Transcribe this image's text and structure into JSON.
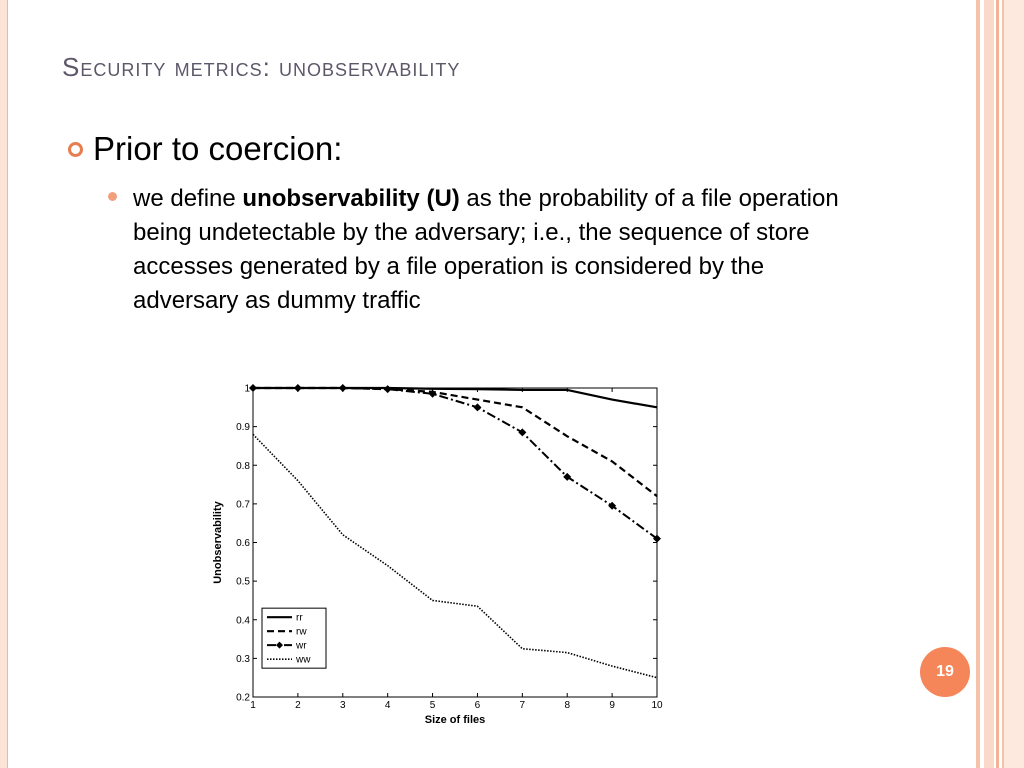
{
  "slide": {
    "title": "Security metrics: unobservability",
    "bullet_main": "Prior to coercion:",
    "bullet_sub_prefix": "we define ",
    "bullet_sub_bold": "unobservability (U)",
    "bullet_sub_rest": " as the probability of a file operation being undetectable by the adversary; i.e., the sequence of store accesses generated by a file operation is considered by the adversary as dummy traffic",
    "page_number": "19"
  },
  "colors": {
    "accent": "#f5865a",
    "title_color": "#5d5769"
  },
  "chart_data": {
    "type": "line",
    "xlabel": "Size of files",
    "ylabel": "Unobservability",
    "x": [
      1,
      2,
      3,
      4,
      5,
      6,
      7,
      8,
      9,
      10
    ],
    "xlim": [
      1,
      10
    ],
    "ylim": [
      0.2,
      1
    ],
    "xticks": [
      "1",
      "2",
      "3",
      "4",
      "5",
      "6",
      "7",
      "8",
      "9",
      "10"
    ],
    "yticks": [
      "0.2",
      "0.3",
      "0.4",
      "0.5",
      "0.6",
      "0.7",
      "0.8",
      "0.9",
      "1"
    ],
    "legend_position": "bottom-left",
    "grid": false,
    "series": [
      {
        "name": "rr",
        "style": "solid",
        "marker": "none",
        "values": [
          1,
          1,
          1,
          1,
          0.998,
          0.997,
          0.995,
          0.995,
          0.97,
          0.95
        ]
      },
      {
        "name": "rw",
        "style": "dashed",
        "marker": "none",
        "values": [
          1,
          1,
          1,
          0.997,
          0.99,
          0.97,
          0.95,
          0.875,
          0.81,
          0.72
        ]
      },
      {
        "name": "wr",
        "style": "dashdot",
        "marker": "diamond",
        "values": [
          1,
          1,
          1,
          0.997,
          0.985,
          0.95,
          0.885,
          0.77,
          0.695,
          0.61
        ]
      },
      {
        "name": "ww",
        "style": "dotted",
        "marker": "none",
        "values": [
          0.88,
          0.76,
          0.62,
          0.54,
          0.45,
          0.435,
          0.325,
          0.315,
          0.28,
          0.25
        ]
      }
    ]
  }
}
